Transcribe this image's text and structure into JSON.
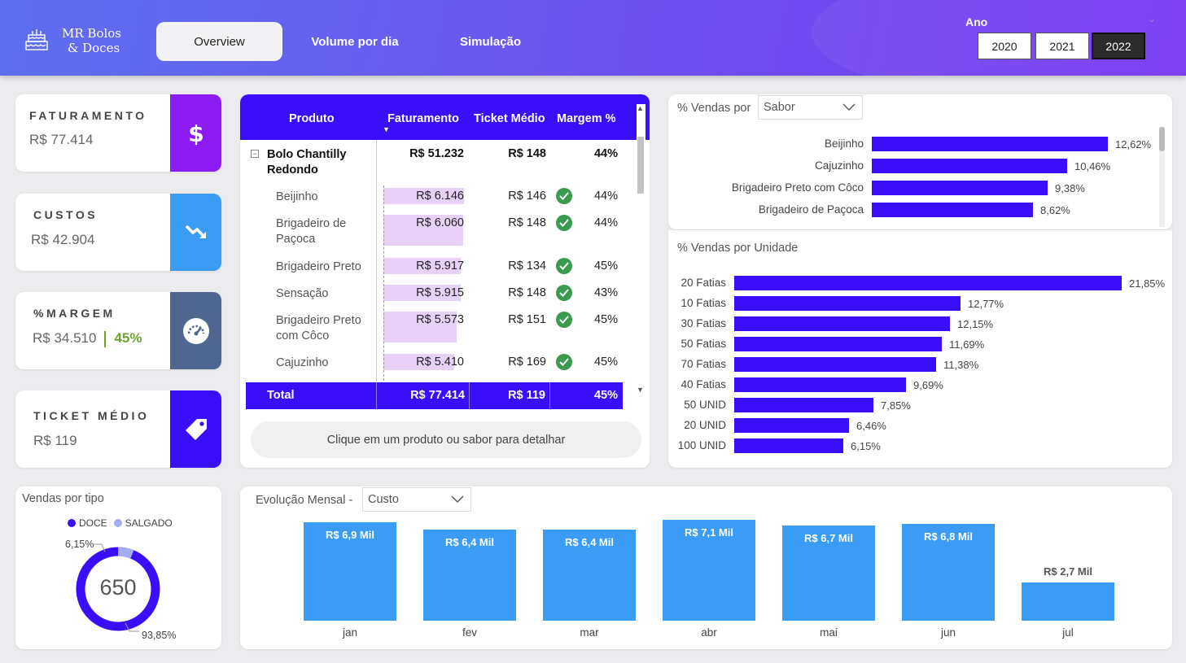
{
  "header": {
    "brand_line1": "MR Bolos",
    "brand_line2": "& Doces",
    "tabs": [
      {
        "label": "Overview",
        "active": true
      },
      {
        "label": "Volume por dia",
        "active": false
      },
      {
        "label": "Simulação",
        "active": false
      }
    ],
    "year_label": "Ano",
    "years": [
      {
        "label": "2020",
        "selected": false
      },
      {
        "label": "2021",
        "selected": false
      },
      {
        "label": "2022",
        "selected": true
      }
    ]
  },
  "kpis": {
    "faturamento": {
      "title": "FATURAMENTO",
      "value": "R$ 77.414",
      "icon": "dollar-icon",
      "color": "#8d1cf4"
    },
    "custos": {
      "title": "CUSTOS",
      "value": "R$ 42.904",
      "icon": "trend-down-icon",
      "color": "#3b9cf6"
    },
    "margem": {
      "title": "%MARGEM",
      "value": "R$ 34.510",
      "pct": "45%",
      "icon": "gauge-icon",
      "color": "#4e6690"
    },
    "ticket": {
      "title": "TICKET MÉDIO",
      "value": "R$ 119",
      "icon": "tag-icon",
      "color": "#3a0ef8"
    }
  },
  "product_table": {
    "headers": [
      "Produto",
      "Faturamento",
      "Ticket Médio",
      "Margem %"
    ],
    "group": {
      "name_line1": "Bolo Chantilly",
      "name_line2": "Redondo",
      "faturamento": "R$ 51.232",
      "ticket": "R$ 148",
      "margem": "44%"
    },
    "rows": [
      {
        "line1": "Beijinho",
        "line2": "",
        "faturamento": "R$ 6.146",
        "ticket": "R$ 146",
        "margem": "44%",
        "fill": 1.0
      },
      {
        "line1": "Brigadeiro de",
        "line2": "Paçoca",
        "faturamento": "R$ 6.060",
        "ticket": "R$ 148",
        "margem": "44%",
        "fill": 0.986
      },
      {
        "line1": "Brigadeiro Preto",
        "line2": "",
        "faturamento": "R$ 5.917",
        "ticket": "R$ 134",
        "margem": "45%",
        "fill": 0.963
      },
      {
        "line1": "Sensação",
        "line2": "",
        "faturamento": "R$ 5.915",
        "ticket": "R$ 148",
        "margem": "43%",
        "fill": 0.962
      },
      {
        "line1": "Brigadeiro Preto",
        "line2": "com Côco",
        "faturamento": "R$ 5.573",
        "ticket": "R$ 151",
        "margem": "45%",
        "fill": 0.907
      },
      {
        "line1": "Cajuzinho",
        "line2": "",
        "faturamento": "R$ 5.410",
        "ticket": "R$ 169",
        "margem": "45%",
        "fill": 0.88
      }
    ],
    "total": {
      "label": "Total",
      "faturamento": "R$ 77.414",
      "ticket": "R$ 119",
      "margem": "45%"
    },
    "hint": "Clique em um produto ou sabor para detalhar"
  },
  "vendas_sabor": {
    "title": "% Vendas por",
    "dropdown": "Sabor",
    "items": [
      {
        "label": "Beijinho",
        "value": 12.62,
        "text": "12,62%"
      },
      {
        "label": "Cajuzinho",
        "value": 10.46,
        "text": "10,46%"
      },
      {
        "label": "Brigadeiro Preto com Côco",
        "value": 9.38,
        "text": "9,38%"
      },
      {
        "label": "Brigadeiro de Paçoca",
        "value": 8.62,
        "text": "8,62%"
      }
    ]
  },
  "vendas_unidade": {
    "title": "% Vendas por Unidade",
    "items": [
      {
        "label": "20 Fatias",
        "value": 21.85,
        "text": "21,85%"
      },
      {
        "label": "10 Fatias",
        "value": 12.77,
        "text": "12,77%"
      },
      {
        "label": "30 Fatias",
        "value": 12.15,
        "text": "12,15%"
      },
      {
        "label": "50 Fatias",
        "value": 11.69,
        "text": "11,69%"
      },
      {
        "label": "70 Fatias",
        "value": 11.38,
        "text": "11,38%"
      },
      {
        "label": "40 Fatias",
        "value": 9.69,
        "text": "9,69%"
      },
      {
        "label": "50 UNID",
        "value": 7.85,
        "text": "7,85%"
      },
      {
        "label": "20 UNID",
        "value": 6.46,
        "text": "6,46%"
      },
      {
        "label": "100 UNID",
        "value": 6.15,
        "text": "6,15%"
      }
    ]
  },
  "vendas_tipo": {
    "title": "Vendas por tipo",
    "legend": [
      {
        "label": "DOCE",
        "color": "#3a0ef8"
      },
      {
        "label": "SALGADO",
        "color": "#a3aef0"
      }
    ],
    "center_value": "650",
    "doce_pct": 93.85,
    "salgado_pct": 6.15,
    "doce_text": "93,85%",
    "salgado_text": "6,15%"
  },
  "evolucao": {
    "title": "Evolução Mensal -",
    "dropdown": "Custo"
  },
  "chart_data": {
    "type": "bar",
    "categories": [
      "jan",
      "fev",
      "mar",
      "abr",
      "mai",
      "jun",
      "jul"
    ],
    "values": [
      6.9,
      6.4,
      6.4,
      7.1,
      6.7,
      6.8,
      2.7
    ],
    "labels": [
      "R$ 6,9 Mil",
      "R$ 6,4 Mil",
      "R$ 6,4 Mil",
      "R$ 7,1 Mil",
      "R$ 6,7 Mil",
      "R$ 6,8 Mil",
      "R$ 2,7 Mil"
    ],
    "title": "",
    "xlabel": "",
    "ylabel": "",
    "color": "#3b9cf6"
  }
}
